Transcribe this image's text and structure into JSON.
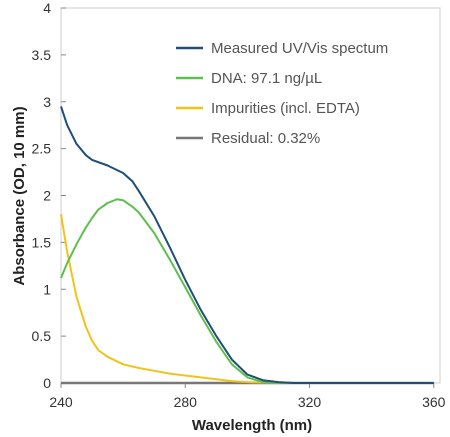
{
  "chart_data": {
    "type": "line",
    "xlabel": "Wavelength (nm)",
    "ylabel": "Absorbance (OD, 10 mm)",
    "xlim": [
      240,
      362
    ],
    "ylim": [
      0,
      4
    ],
    "xticks": [
      240,
      280,
      320,
      360
    ],
    "yticks": [
      0,
      0.5,
      1,
      1.5,
      2,
      2.5,
      3,
      3.5,
      4
    ],
    "legend_position": "top-right",
    "grid": false,
    "series": [
      {
        "name": "Measured UV/Vis spectum",
        "color": "#1f4e79",
        "x": [
          240,
          242,
          245,
          248,
          250,
          255,
          260,
          263,
          265,
          270,
          275,
          280,
          285,
          290,
          295,
          300,
          305,
          310,
          315,
          320,
          330,
          340,
          350,
          360
        ],
        "y": [
          2.95,
          2.75,
          2.55,
          2.43,
          2.38,
          2.32,
          2.24,
          2.15,
          2.05,
          1.78,
          1.45,
          1.1,
          0.78,
          0.5,
          0.25,
          0.09,
          0.03,
          0.01,
          0.0,
          0.0,
          0.0,
          0.0,
          0.0,
          0.0
        ]
      },
      {
        "name": "DNA: 97.1 ng/µL",
        "color": "#5cbf4e",
        "x": [
          240,
          242,
          245,
          248,
          250,
          252,
          255,
          258,
          260,
          263,
          265,
          270,
          275,
          280,
          285,
          290,
          295,
          300,
          305,
          310,
          320,
          340,
          360
        ],
        "y": [
          1.12,
          1.28,
          1.48,
          1.66,
          1.76,
          1.85,
          1.92,
          1.96,
          1.95,
          1.88,
          1.82,
          1.6,
          1.32,
          1.02,
          0.72,
          0.44,
          0.2,
          0.06,
          0.01,
          0.0,
          0.0,
          0.0,
          0.0
        ]
      },
      {
        "name": "Impurities (incl. EDTA)",
        "color": "#f0c419",
        "x": [
          240,
          242,
          245,
          248,
          250,
          252,
          255,
          260,
          265,
          270,
          275,
          280,
          285,
          290,
          295,
          300,
          310,
          320,
          340,
          360
        ],
        "y": [
          1.8,
          1.4,
          0.92,
          0.6,
          0.45,
          0.35,
          0.28,
          0.2,
          0.16,
          0.13,
          0.1,
          0.08,
          0.06,
          0.04,
          0.02,
          0.01,
          0.0,
          0.0,
          0.0,
          0.0
        ]
      },
      {
        "name": "Residual: 0.32%",
        "color": "#777777",
        "x": [
          240,
          260,
          280,
          300,
          320,
          340,
          360
        ],
        "y": [
          0.0,
          0.0,
          0.0,
          0.0,
          0.0,
          0.0,
          0.0
        ]
      }
    ]
  }
}
